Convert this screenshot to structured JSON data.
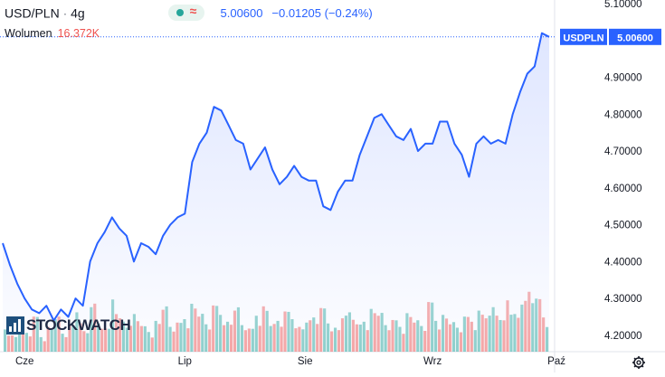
{
  "header": {
    "symbol": "USD/PLN",
    "interval": "4g",
    "price": "5.00600",
    "change": "−0.01205 (−0.24%)"
  },
  "volume": {
    "label": "Wolumen",
    "value": "16.372K"
  },
  "logo": {
    "text": "STOCKWATCH"
  },
  "price_tag": {
    "symbol": "USDPLN",
    "value": "5.00600"
  },
  "colors": {
    "line": "#2962ff",
    "area_top": "#dfe6ff",
    "vol_up": "#26a69a",
    "vol_down": "#ef5350",
    "tag": "#2962ff"
  },
  "icons": {
    "settings": "gear-icon",
    "live": "dot-icon",
    "wave": "approx-icon"
  },
  "chart_data": {
    "type": "area",
    "ylim": [
      4.18,
      5.11
    ],
    "xlim": [
      0,
      150
    ],
    "ytick_values": [
      4.2,
      4.3,
      4.4,
      4.5,
      4.6,
      4.7,
      4.8,
      4.9,
      5.0,
      5.1
    ],
    "ytick_labels": [
      "4.20000",
      "4.30000",
      "4.40000",
      "4.50000",
      "4.60000",
      "4.70000",
      "4.80000",
      "4.90000",
      "5.00000",
      "5.10000"
    ],
    "xticks": [
      {
        "label": "Cze",
        "x": 6
      },
      {
        "label": "Lip",
        "x": 50
      },
      {
        "label": "Sie",
        "x": 83
      },
      {
        "label": "Wrz",
        "x": 118
      },
      {
        "label": "Paź",
        "x": 152
      }
    ],
    "series": [
      {
        "x": [
          0,
          2,
          4,
          6,
          8,
          10,
          12,
          14,
          16,
          18,
          20,
          22,
          24,
          26,
          28,
          30,
          32,
          34,
          36,
          38,
          40,
          42,
          44,
          46,
          48,
          50,
          52,
          54,
          56,
          58,
          60,
          62,
          64,
          66,
          68,
          70,
          72,
          74,
          76,
          78,
          80,
          82,
          84,
          86,
          88,
          90,
          92,
          94,
          96,
          98,
          100,
          102,
          104,
          106,
          108,
          110,
          112,
          114,
          116,
          118,
          120,
          122,
          124,
          126,
          128,
          130,
          132,
          134,
          136,
          138,
          140,
          142,
          144,
          146,
          148,
          150
        ],
        "values": [
          4.45,
          4.39,
          4.34,
          4.3,
          4.27,
          4.26,
          4.28,
          4.24,
          4.27,
          4.25,
          4.3,
          4.28,
          4.4,
          4.45,
          4.48,
          4.52,
          4.49,
          4.47,
          4.4,
          4.45,
          4.44,
          4.42,
          4.47,
          4.5,
          4.52,
          4.53,
          4.67,
          4.72,
          4.75,
          4.82,
          4.81,
          4.77,
          4.73,
          4.72,
          4.65,
          4.68,
          4.71,
          4.65,
          4.61,
          4.63,
          4.66,
          4.63,
          4.62,
          4.62,
          4.55,
          4.54,
          4.59,
          4.62,
          4.62,
          4.69,
          4.74,
          4.79,
          4.8,
          4.77,
          4.74,
          4.73,
          4.76,
          4.7,
          4.72,
          4.72,
          4.78,
          4.78,
          4.72,
          4.69,
          4.63,
          4.72,
          4.74,
          4.72,
          4.73,
          4.72,
          4.8,
          4.86,
          4.91,
          4.93,
          5.02,
          5.01
        ]
      }
    ],
    "volume_series": {
      "max": 16.372,
      "values": [
        2.6,
        1.9,
        3.4,
        2.2,
        4.1,
        1.7,
        2.9,
        3.8,
        2.1,
        3.1,
        4.6,
        2.4,
        5.2,
        3.3,
        2.7,
        6.1,
        3.9,
        2.8,
        4.4,
        3.0,
        2.3,
        3.6,
        4.9,
        2.9,
        3.4,
        3.8,
        5.6,
        4.1,
        3.2,
        5.4,
        4.3,
        3.5,
        4.8,
        3.1,
        2.7,
        4.2,
        5.3,
        3.0,
        3.6,
        4.7,
        3.8,
        2.9,
        3.4,
        4.0,
        5.1,
        3.3,
        2.8,
        3.9,
        4.6,
        3.2,
        3.5,
        5.0,
        4.2,
        3.1,
        3.7,
        2.9,
        4.5,
        3.4,
        3.0,
        5.8,
        3.6,
        4.3,
        3.2,
        2.8,
        4.1,
        3.5,
        4.8,
        3.9,
        5.2,
        3.7,
        6.0,
        4.4,
        5.5,
        7.0,
        6.2,
        4.0
      ],
      "up": [
        1,
        0,
        1,
        1,
        0,
        1,
        0,
        1,
        1,
        0,
        1,
        0,
        1,
        1,
        0,
        1,
        0,
        1,
        1,
        0,
        1,
        1,
        0,
        1,
        0,
        1,
        1,
        0,
        1,
        0,
        1,
        1,
        0,
        1,
        0,
        1,
        0,
        1,
        1,
        0,
        1,
        0,
        1,
        1,
        0,
        1,
        1,
        0,
        1,
        0,
        1,
        1,
        0,
        1,
        0,
        1,
        1,
        0,
        1,
        0,
        1,
        1,
        0,
        1,
        1,
        0,
        1,
        0,
        1,
        1,
        0,
        1,
        1,
        0,
        1,
        0
      ]
    }
  }
}
